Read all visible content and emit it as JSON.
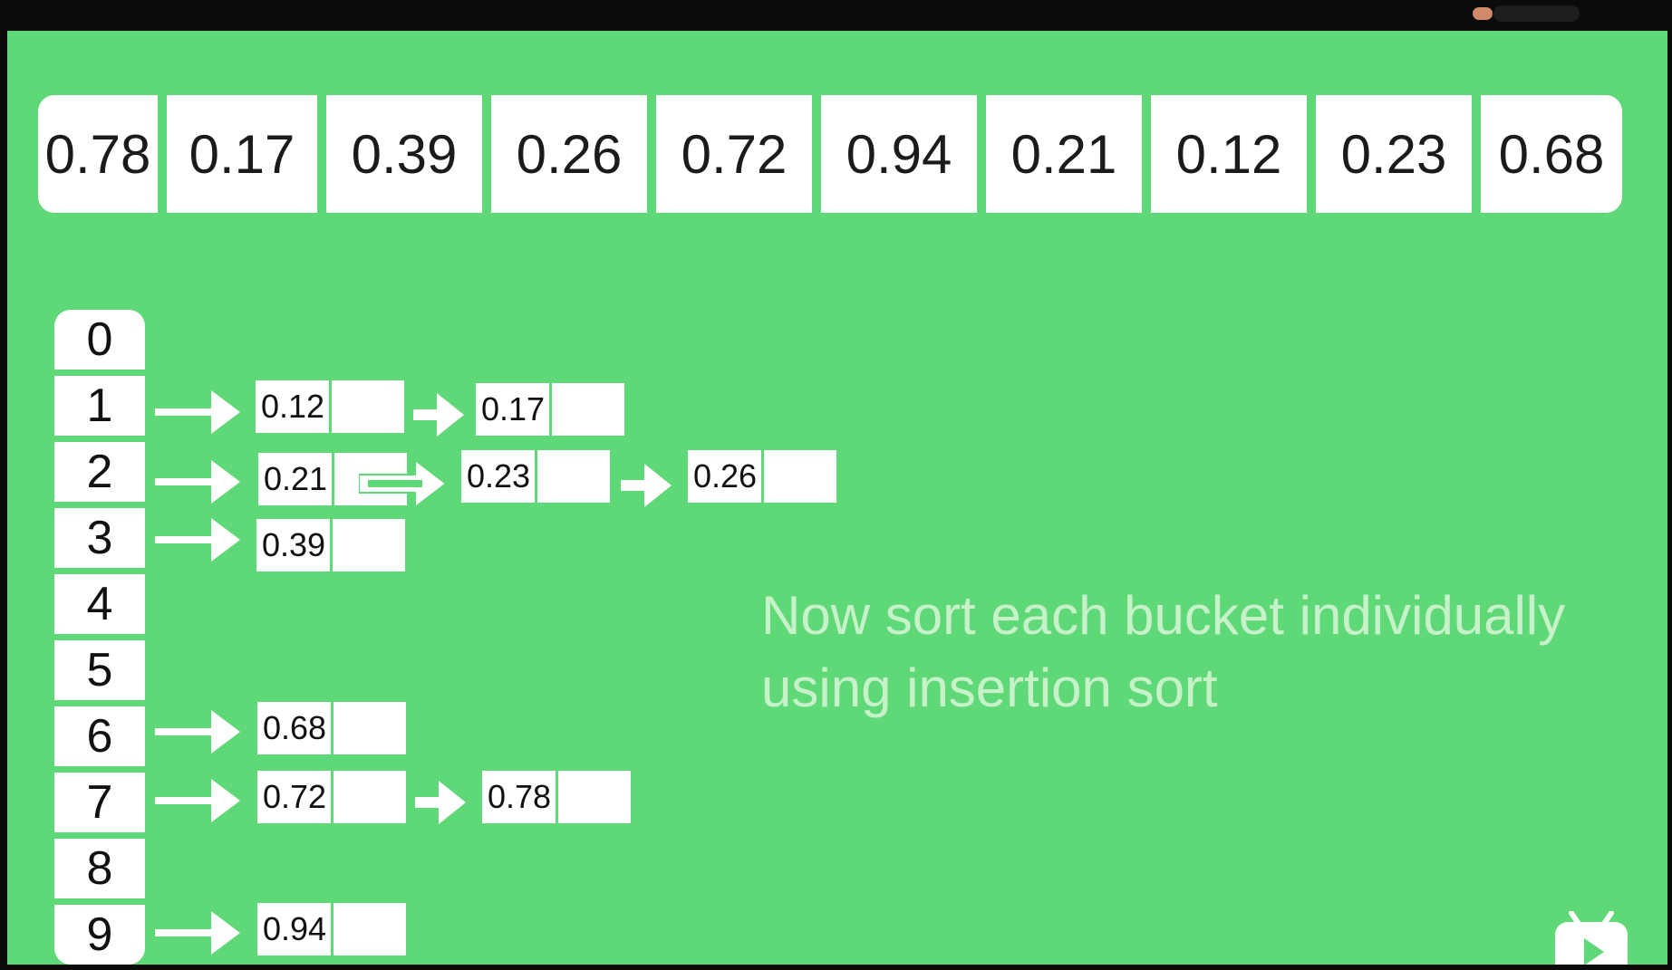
{
  "input_array": [
    "0.78",
    "0.17",
    "0.39",
    "0.26",
    "0.72",
    "0.94",
    "0.21",
    "0.12",
    "0.23",
    "0.68"
  ],
  "buckets": [
    {
      "index": "0",
      "items": []
    },
    {
      "index": "1",
      "items": [
        "0.12",
        "0.17"
      ]
    },
    {
      "index": "2",
      "items": [
        "0.21",
        "0.23",
        "0.26"
      ]
    },
    {
      "index": "3",
      "items": [
        "0.39"
      ]
    },
    {
      "index": "4",
      "items": []
    },
    {
      "index": "5",
      "items": []
    },
    {
      "index": "6",
      "items": [
        "0.68"
      ]
    },
    {
      "index": "7",
      "items": [
        "0.72",
        "0.78"
      ]
    },
    {
      "index": "8",
      "items": []
    },
    {
      "index": "9",
      "items": [
        "0.94"
      ]
    }
  ],
  "caption": {
    "line1": "Now sort each bucket individually",
    "line2": "using insertion sort"
  },
  "colors": {
    "background": "#5fd877",
    "cell": "#ffffff",
    "caption": "#c7f2c9"
  },
  "icons": {
    "corner_badge": "tv-play-icon"
  }
}
